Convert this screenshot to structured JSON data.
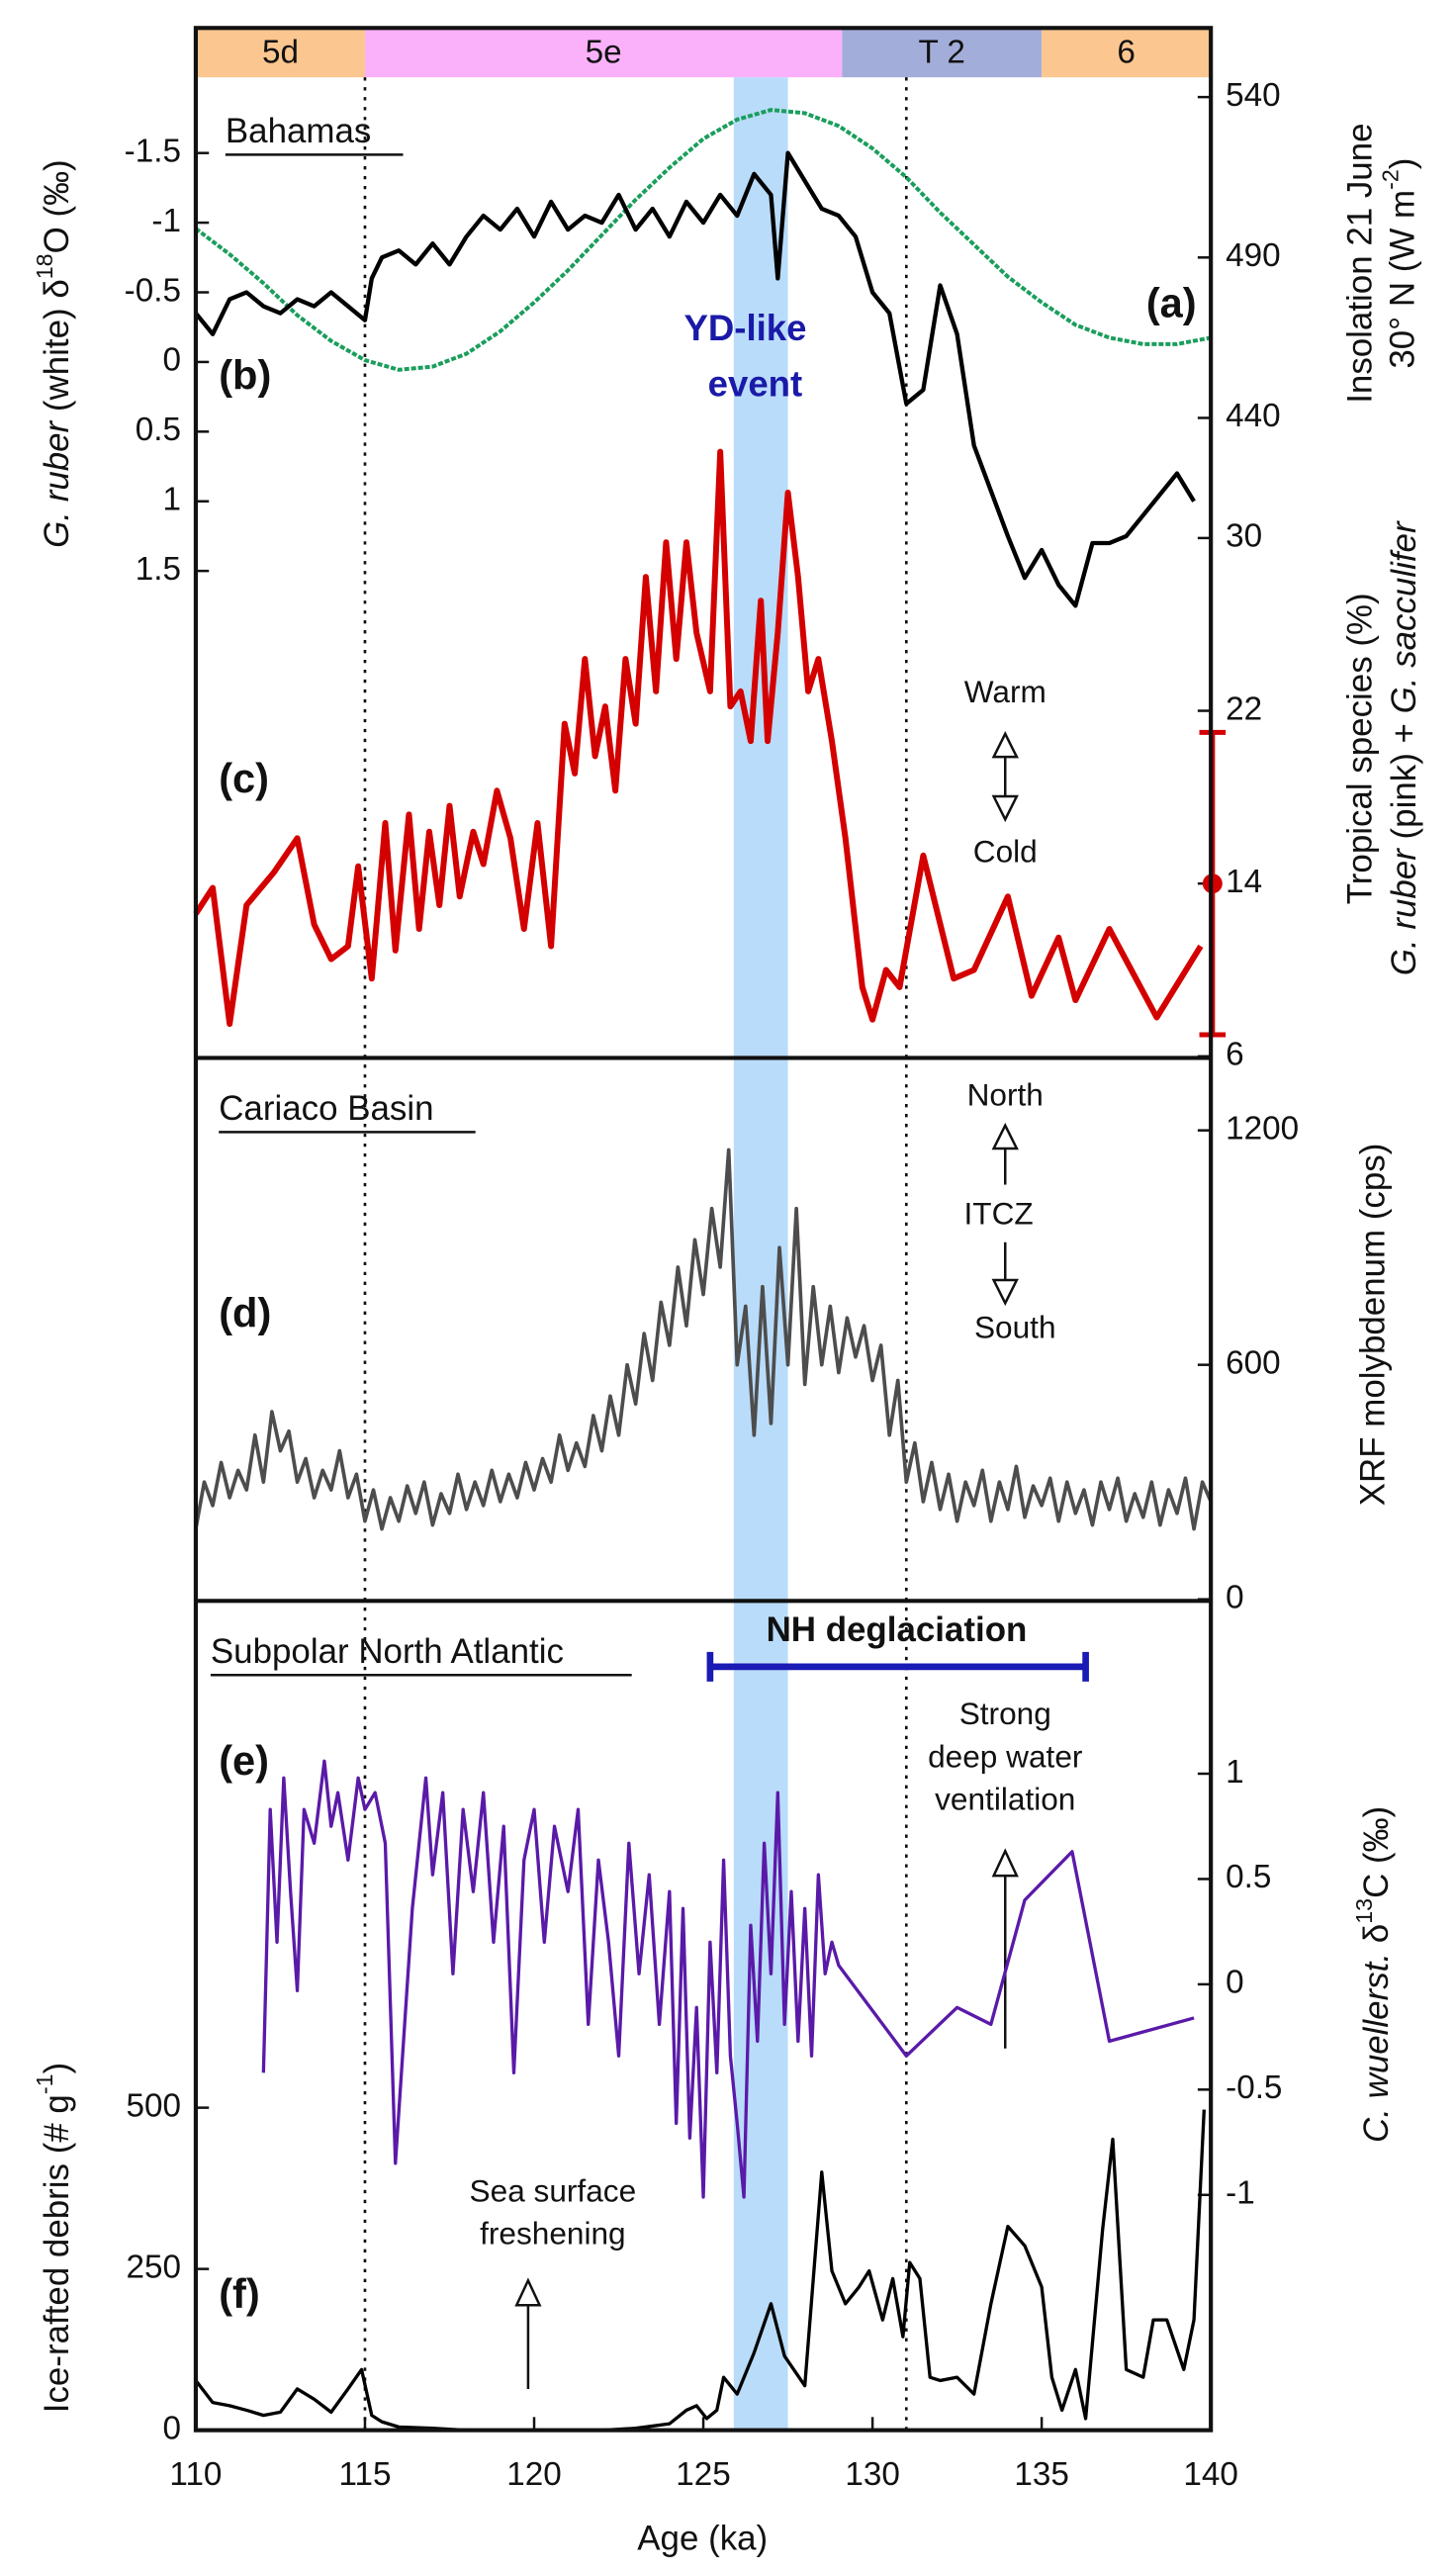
{
  "x_axis": {
    "label": "Age (ka)",
    "xlim": [
      110,
      140
    ],
    "xticks": [
      110,
      115,
      120,
      125,
      130,
      135,
      140
    ]
  },
  "stages": [
    {
      "label": "5d",
      "start": 110,
      "end": 115,
      "color": "#fcc690"
    },
    {
      "label": "5e",
      "start": 115,
      "end": 129.1,
      "color": "#fbb1f9"
    },
    {
      "label": "T 2",
      "start": 129.1,
      "end": 135,
      "color": "#a3add9"
    },
    {
      "label": "6",
      "start": 135,
      "end": 140,
      "color": "#fcc690"
    }
  ],
  "yd_event": {
    "label": [
      "YD-like",
      "event"
    ],
    "start": 125.9,
    "end": 127.5,
    "color": "#b9dcfa"
  },
  "transitions": [
    115,
    131
  ],
  "nh_deglaciation": {
    "label": "NH deglaciation",
    "start": 125.2,
    "end": 136.3,
    "color": "#1a1ab4"
  },
  "annotations": {
    "bahamas": "Bahamas",
    "warm": "Warm",
    "cold": "Cold",
    "cariaco": "Cariaco Basin",
    "north": "North",
    "itcz": "ITCZ",
    "south": "South",
    "subpolar": "Subpolar North Atlantic",
    "ventilation": [
      "Strong",
      "deep water",
      "ventilation"
    ],
    "freshening": [
      "Sea surface",
      "freshening"
    ]
  },
  "chart_data": [
    {
      "type": "line",
      "panel_label": "(a)",
      "axis_side": "right",
      "axis_label": [
        [
          "Insolation 21 June"
        ],
        [
          "30° N (W m",
          "-2",
          ")"
        ]
      ],
      "ylim": [
        440,
        540
      ],
      "yticks": [
        440,
        490,
        540
      ],
      "color": "#1a9e5c",
      "dashed": true,
      "x": [
        110,
        111,
        112,
        113,
        114,
        115,
        116,
        117,
        118,
        119,
        120,
        121,
        122,
        123,
        124,
        125,
        126,
        127,
        128,
        129,
        130,
        131,
        132,
        133,
        134,
        135,
        136,
        137,
        138,
        139,
        140
      ],
      "values": [
        499,
        491,
        482,
        472,
        464,
        458,
        455,
        456,
        460,
        467,
        476,
        486,
        497,
        508,
        518,
        527,
        533,
        536,
        535,
        531,
        524,
        515,
        504,
        494,
        484,
        476,
        469,
        465,
        463,
        463,
        465
      ]
    },
    {
      "type": "line",
      "panel_label": "(b)",
      "axis_side": "left",
      "axis_label": [
        [
          "G. ruber",
          " (white) δ",
          "18",
          "O (‰)"
        ]
      ],
      "ylim": [
        1.5,
        -1.5
      ],
      "yticks": [
        -1.5,
        -1,
        -0.5,
        0,
        0.5,
        1,
        1.5
      ],
      "color": "#000000",
      "x": [
        110,
        110.5,
        111,
        111.5,
        112,
        112.5,
        113,
        113.5,
        114,
        114.5,
        115,
        115.2,
        115.5,
        116,
        116.5,
        117,
        117.5,
        118,
        118.5,
        119,
        119.5,
        120,
        120.5,
        121,
        121.5,
        122,
        122.5,
        123,
        123.5,
        124,
        124.5,
        125,
        125.5,
        126,
        126.5,
        127,
        127.2,
        127.5,
        128,
        128.5,
        129,
        129.5,
        130,
        130.5,
        131,
        131.5,
        132,
        132.5,
        133,
        134,
        134.5,
        135,
        135.5,
        136,
        136.5,
        137,
        137.5,
        138,
        139,
        139.5
      ],
      "values": [
        -0.35,
        -0.2,
        -0.45,
        -0.5,
        -0.4,
        -0.35,
        -0.45,
        -0.4,
        -0.5,
        -0.4,
        -0.3,
        -0.6,
        -0.75,
        -0.8,
        -0.7,
        -0.85,
        -0.7,
        -0.9,
        -1.05,
        -0.95,
        -1.1,
        -0.9,
        -1.15,
        -0.95,
        -1.05,
        -1,
        -1.2,
        -0.95,
        -1.1,
        -0.9,
        -1.15,
        -1,
        -1.2,
        -1.05,
        -1.35,
        -1.2,
        -0.6,
        -1.5,
        -1.3,
        -1.1,
        -1.05,
        -0.9,
        -0.5,
        -0.35,
        0.3,
        0.2,
        -0.55,
        -0.2,
        0.6,
        1.25,
        1.55,
        1.35,
        1.6,
        1.75,
        1.3,
        1.3,
        1.25,
        1.1,
        0.8,
        1.0
      ]
    },
    {
      "type": "line",
      "panel_label": "(c)",
      "axis_side": "right",
      "axis_label": [
        [
          "Tropical species (%)"
        ],
        [
          "G. ruber",
          " (pink) + ",
          "G. sacculifer"
        ]
      ],
      "ylim": [
        6,
        30
      ],
      "yticks": [
        6,
        14,
        22,
        30
      ],
      "color": "#d40000",
      "error_bar": {
        "value": 14,
        "error": 7
      },
      "x": [
        110,
        110.5,
        111,
        111.5,
        112.3,
        113,
        113.5,
        114,
        114.5,
        114.8,
        115.2,
        115.6,
        115.9,
        116.3,
        116.6,
        116.9,
        117.2,
        117.5,
        117.8,
        118.2,
        118.5,
        118.9,
        119.3,
        119.7,
        120.1,
        120.5,
        120.9,
        121.2,
        121.5,
        121.8,
        122.1,
        122.4,
        122.7,
        123,
        123.3,
        123.6,
        123.9,
        124.2,
        124.5,
        124.8,
        125.2,
        125.5,
        125.8,
        126.1,
        126.4,
        126.7,
        126.9,
        127.2,
        127.5,
        127.8,
        128.1,
        128.4,
        128.8,
        129.2,
        129.7,
        130,
        130.4,
        130.8,
        131.5,
        132.4,
        133,
        134,
        134.7,
        135.5,
        136,
        137,
        138.4,
        139.7
      ],
      "values": [
        12.6,
        13.8,
        7.5,
        13,
        14.5,
        16.1,
        12.1,
        10.5,
        11.1,
        14.8,
        9.6,
        16.8,
        10.9,
        17.2,
        11.9,
        16.4,
        13,
        17.6,
        13.4,
        16.4,
        14.9,
        18.3,
        16.1,
        11.9,
        16.8,
        11.1,
        21.4,
        19.1,
        24.4,
        19.9,
        22.2,
        18.3,
        24.4,
        21.4,
        28.2,
        22.9,
        29.8,
        24.4,
        29.8,
        25.6,
        22.9,
        34,
        22.2,
        22.9,
        20.6,
        27.1,
        20.6,
        25.6,
        32.1,
        28.2,
        22.9,
        24.4,
        20.6,
        16.1,
        9.2,
        7.7,
        10,
        9.2,
        15.3,
        9.6,
        10,
        13.4,
        8.8,
        11.5,
        8.6,
        11.9,
        7.8,
        11.1
      ]
    },
    {
      "type": "line",
      "panel_label": "(d)",
      "axis_side": "right",
      "axis_label": [
        [
          "XRF molybdenum (cps)"
        ]
      ],
      "ylim": [
        0,
        1200
      ],
      "yticks": [
        0,
        600,
        1200
      ],
      "color": "#4d4d4d",
      "x": [
        110,
        110.25,
        110.5,
        110.75,
        111,
        111.25,
        111.5,
        111.75,
        112,
        112.25,
        112.5,
        112.75,
        113,
        113.25,
        113.5,
        113.75,
        114,
        114.25,
        114.5,
        114.75,
        115,
        115.25,
        115.5,
        115.75,
        116,
        116.25,
        116.5,
        116.75,
        117,
        117.25,
        117.5,
        117.75,
        118,
        118.25,
        118.5,
        118.75,
        119,
        119.25,
        119.5,
        119.75,
        120,
        120.25,
        120.5,
        120.75,
        121,
        121.25,
        121.5,
        121.75,
        122,
        122.25,
        122.5,
        122.75,
        123,
        123.25,
        123.5,
        123.75,
        124,
        124.25,
        124.5,
        124.75,
        125,
        125.25,
        125.5,
        125.75,
        126,
        126.25,
        126.5,
        126.75,
        127,
        127.25,
        127.5,
        127.75,
        128,
        128.25,
        128.5,
        128.75,
        129,
        129.25,
        129.5,
        129.75,
        130,
        130.25,
        130.5,
        130.75,
        131,
        131.25,
        131.5,
        131.75,
        132,
        132.25,
        132.5,
        132.75,
        133,
        133.25,
        133.5,
        133.75,
        134,
        134.25,
        134.5,
        134.75,
        135,
        135.25,
        135.5,
        135.75,
        136,
        136.25,
        136.5,
        136.75,
        137,
        137.25,
        137.5,
        137.75,
        138,
        138.25,
        138.5,
        138.75,
        139,
        139.25,
        139.5,
        139.75,
        140
      ],
      "values": [
        180,
        300,
        240,
        350,
        260,
        330,
        280,
        420,
        300,
        480,
        380,
        430,
        300,
        360,
        260,
        330,
        280,
        380,
        260,
        320,
        200,
        280,
        180,
        260,
        200,
        290,
        220,
        300,
        190,
        270,
        220,
        320,
        230,
        300,
        240,
        330,
        250,
        320,
        260,
        350,
        280,
        360,
        300,
        420,
        330,
        400,
        340,
        470,
        380,
        520,
        420,
        600,
        500,
        680,
        560,
        760,
        650,
        850,
        700,
        920,
        780,
        1000,
        850,
        1150,
        600,
        750,
        420,
        800,
        450,
        900,
        600,
        1000,
        550,
        800,
        600,
        750,
        580,
        720,
        620,
        700,
        560,
        650,
        420,
        560,
        300,
        400,
        250,
        350,
        230,
        320,
        200,
        300,
        240,
        330,
        200,
        300,
        230,
        340,
        210,
        290,
        240,
        310,
        200,
        300,
        220,
        280,
        190,
        300,
        230,
        310,
        200,
        270,
        210,
        300,
        190,
        280,
        220,
        310,
        180,
        300,
        250
      ]
    },
    {
      "type": "line",
      "panel_label": "(e)",
      "axis_side": "right",
      "axis_label": [
        [
          "C. wuellerst.",
          " δ",
          "13",
          "C (‰)"
        ]
      ],
      "ylim": [
        -1,
        1
      ],
      "yticks": [
        -1,
        -0.5,
        0,
        0.5,
        1
      ],
      "color": "#5a1aa8",
      "x": [
        112,
        112.2,
        112.4,
        112.6,
        112.8,
        113,
        113.2,
        113.5,
        113.8,
        114,
        114.2,
        114.5,
        114.8,
        115,
        115.3,
        115.6,
        115.9,
        116.4,
        116.8,
        117,
        117.3,
        117.6,
        117.9,
        118.2,
        118.5,
        118.8,
        119.1,
        119.4,
        119.7,
        120,
        120.3,
        120.6,
        121,
        121.3,
        121.6,
        121.9,
        122.2,
        122.5,
        122.8,
        123.1,
        123.4,
        123.7,
        124,
        124.2,
        124.4,
        124.6,
        124.8,
        125,
        125.2,
        125.4,
        125.6,
        125.8,
        126,
        126.2,
        126.4,
        126.6,
        126.8,
        127,
        127.2,
        127.4,
        127.6,
        127.8,
        128,
        128.2,
        128.4,
        128.6,
        128.8,
        129,
        131,
        132.5,
        133.5,
        134.5,
        135.9,
        137,
        139.5
      ],
      "values": [
        -0.42,
        0.83,
        0.2,
        0.98,
        0.44,
        -0.03,
        0.83,
        0.67,
        1.06,
        0.75,
        0.91,
        0.59,
        0.98,
        0.83,
        0.91,
        0.67,
        -0.85,
        0.36,
        0.98,
        0.52,
        0.91,
        0.05,
        0.83,
        0.44,
        0.91,
        0.2,
        0.75,
        -0.42,
        0.59,
        0.83,
        0.2,
        0.75,
        0.44,
        0.83,
        -0.19,
        0.59,
        0.2,
        -0.34,
        0.67,
        0.05,
        0.52,
        -0.19,
        0.44,
        -0.66,
        0.36,
        -0.73,
        -0.11,
        -1.01,
        0.2,
        -0.42,
        0.59,
        -0.34,
        -0.66,
        -1.01,
        0.28,
        -0.27,
        0.67,
        0.05,
        0.91,
        -0.19,
        0.44,
        -0.27,
        0.36,
        -0.34,
        0.52,
        0.05,
        0.2,
        0.09,
        -0.34,
        -0.11,
        -0.19,
        0.4,
        0.63,
        -0.27,
        -0.16
      ]
    },
    {
      "type": "line",
      "panel_label": "(f)",
      "axis_side": "left",
      "axis_label": [
        [
          "Ice-rafted debris (# g",
          "-1",
          ")"
        ]
      ],
      "ylim": [
        0,
        500
      ],
      "yticks": [
        0,
        250,
        500
      ],
      "color": "#000000",
      "x": [
        110,
        110.5,
        111,
        111.5,
        112,
        112.5,
        113,
        113.5,
        114,
        114.5,
        114.9,
        115.2,
        115.5,
        116,
        117,
        118,
        119,
        120,
        121,
        122,
        123,
        124,
        124.5,
        124.8,
        125.1,
        125.4,
        125.6,
        126,
        126.5,
        127,
        127.4,
        128,
        128.5,
        128.8,
        129.2,
        129.6,
        129.9,
        130.3,
        130.6,
        130.9,
        131.1,
        131.4,
        131.7,
        132,
        132.5,
        133,
        133.5,
        134,
        134.5,
        135,
        135.3,
        135.6,
        136,
        136.3,
        136.8,
        137.1,
        137.5,
        138,
        138.3,
        138.7,
        139.2,
        139.5,
        139.8
      ],
      "values": [
        77,
        43,
        38,
        31,
        23,
        28,
        64,
        48,
        28,
        64,
        94,
        23,
        13,
        5,
        3,
        0,
        0,
        0,
        0,
        0,
        3,
        10,
        31,
        38,
        18,
        31,
        82,
        56,
        120,
        196,
        115,
        69,
        400,
        247,
        196,
        222,
        247,
        171,
        235,
        145,
        260,
        235,
        82,
        77,
        82,
        56,
        196,
        316,
        286,
        222,
        82,
        31,
        94,
        18,
        311,
        451,
        94,
        82,
        171,
        171,
        94,
        171,
        497
      ]
    }
  ]
}
